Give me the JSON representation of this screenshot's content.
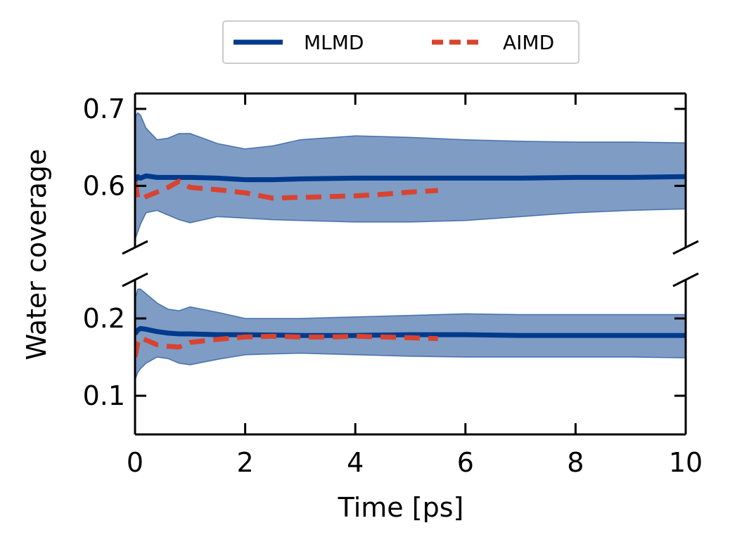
{
  "chart_data": {
    "type": "line",
    "xlabel": "Time [ps]",
    "ylabel": "Water coverage",
    "xlim": [
      0,
      10
    ],
    "xticks": [
      0,
      2,
      4,
      6,
      8,
      10
    ],
    "legend": {
      "placement": "top-center",
      "entries": [
        {
          "name": "MLMD",
          "color": "#003a8c",
          "style": "solid"
        },
        {
          "name": "AIMD",
          "color": "#d9432f",
          "style": "dashed"
        }
      ]
    },
    "panels": [
      {
        "name": "upper",
        "ylim": [
          0.52,
          0.72
        ],
        "yticks": [
          0.6,
          0.7
        ],
        "series": [
          {
            "name": "MLMD",
            "x": [
              0,
              0.05,
              0.1,
              0.2,
              0.4,
              0.6,
              0.8,
              1.0,
              1.5,
              2.0,
              2.5,
              3.0,
              4.0,
              5.0,
              6.0,
              7.0,
              8.0,
              9.0,
              10.0
            ],
            "y": [
              0.607,
              0.612,
              0.61,
              0.613,
              0.611,
              0.611,
              0.611,
              0.611,
              0.61,
              0.608,
              0.608,
              0.609,
              0.61,
              0.61,
              0.61,
              0.61,
              0.611,
              0.611,
              0.612
            ],
            "band_upper": [
              0.69,
              0.695,
              0.692,
              0.675,
              0.66,
              0.662,
              0.668,
              0.668,
              0.655,
              0.648,
              0.652,
              0.66,
              0.665,
              0.663,
              0.66,
              0.658,
              0.657,
              0.657,
              0.656
            ],
            "band_lower": [
              0.53,
              0.54,
              0.55,
              0.565,
              0.568,
              0.562,
              0.556,
              0.552,
              0.56,
              0.558,
              0.556,
              0.555,
              0.553,
              0.553,
              0.555,
              0.56,
              0.565,
              0.568,
              0.57
            ]
          },
          {
            "name": "AIMD",
            "x": [
              0,
              0.05,
              0.1,
              0.2,
              0.4,
              0.6,
              0.8,
              1.0,
              1.5,
              2.0,
              2.5,
              3.0,
              3.5,
              4.0,
              4.5,
              5.0,
              5.5
            ],
            "y": [
              0.605,
              0.585,
              0.582,
              0.586,
              0.592,
              0.598,
              0.606,
              0.598,
              0.595,
              0.591,
              0.584,
              0.585,
              0.586,
              0.587,
              0.589,
              0.592,
              0.594
            ]
          }
        ]
      },
      {
        "name": "lower",
        "ylim": [
          0.05,
          0.25
        ],
        "yticks": [
          0.1,
          0.2
        ],
        "series": [
          {
            "name": "MLMD",
            "x": [
              0,
              0.05,
              0.1,
              0.2,
              0.4,
              0.6,
              0.8,
              1.0,
              1.5,
              2.0,
              3.0,
              4.0,
              5.0,
              6.0,
              7.0,
              8.0,
              9.0,
              10.0
            ],
            "y": [
              0.18,
              0.185,
              0.187,
              0.186,
              0.183,
              0.181,
              0.18,
              0.18,
              0.179,
              0.179,
              0.178,
              0.178,
              0.179,
              0.179,
              0.178,
              0.178,
              0.178,
              0.178
            ],
            "band_upper": [
              0.225,
              0.238,
              0.238,
              0.232,
              0.22,
              0.212,
              0.21,
              0.215,
              0.208,
              0.2,
              0.2,
              0.202,
              0.204,
              0.206,
              0.205,
              0.205,
              0.205,
              0.205
            ],
            "band_lower": [
              0.12,
              0.13,
              0.135,
              0.142,
              0.15,
              0.148,
              0.142,
              0.14,
              0.147,
              0.153,
              0.155,
              0.153,
              0.151,
              0.15,
              0.15,
              0.15,
              0.15,
              0.149
            ]
          },
          {
            "name": "AIMD",
            "x": [
              0,
              0.05,
              0.1,
              0.2,
              0.4,
              0.6,
              0.8,
              1.0,
              1.5,
              2.0,
              2.5,
              3.0,
              3.5,
              4.0,
              4.5,
              5.0,
              5.5
            ],
            "y": [
              0.15,
              0.168,
              0.175,
              0.172,
              0.166,
              0.164,
              0.163,
              0.169,
              0.173,
              0.176,
              0.177,
              0.176,
              0.176,
              0.177,
              0.176,
              0.175,
              0.174
            ]
          }
        ]
      }
    ]
  }
}
